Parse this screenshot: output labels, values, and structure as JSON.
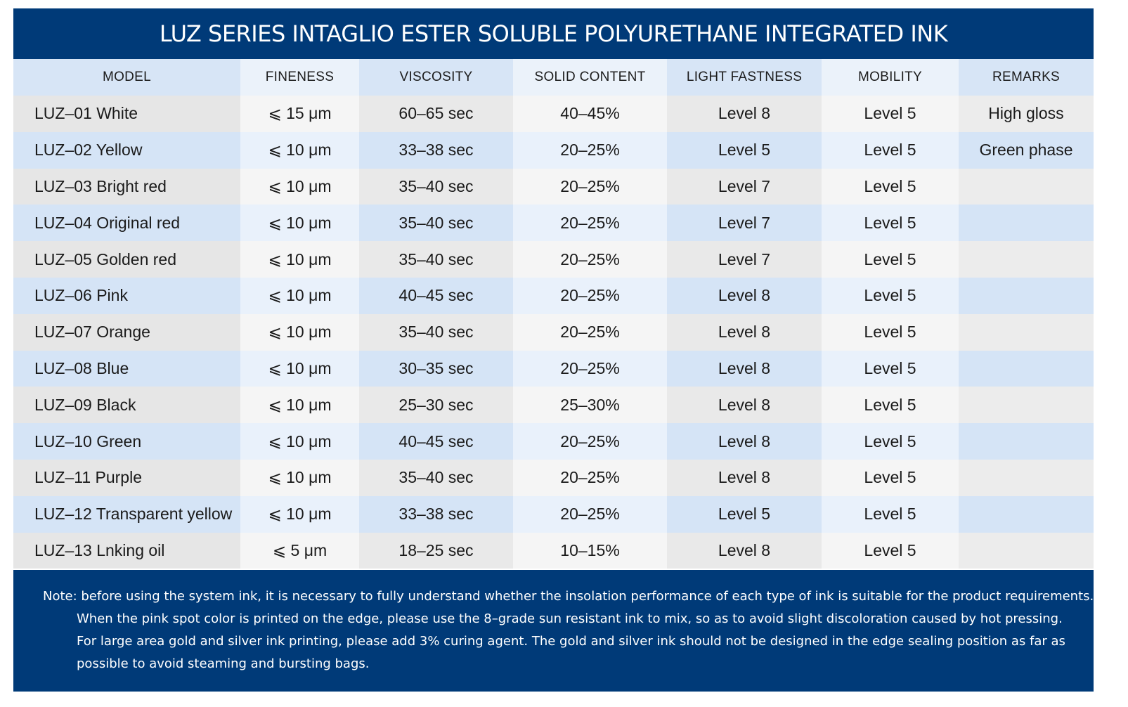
{
  "title": "LUZ SERIES INTAGLIO ESTER SOLUBLE POLYURETHANE INTEGRATED INK",
  "columns": [
    "MODEL",
    "FINENESS",
    "VISCOSITY",
    "SOLID CONTENT",
    "LIGHT FASTNESS",
    "MOBILITY",
    "REMARKS"
  ],
  "rows": [
    [
      "LUZ–01 White",
      "⩽ 15 μm",
      "60–65 sec",
      "40–45%",
      "Level 8",
      "Level 5",
      "High gloss"
    ],
    [
      "LUZ–02 Yellow",
      "⩽ 10 μm",
      "33–38 sec",
      "20–25%",
      "Level 5",
      "Level 5",
      "Green phase"
    ],
    [
      "LUZ–03 Bright red",
      "⩽ 10 μm",
      "35–40 sec",
      "20–25%",
      "Level 7",
      "Level 5",
      ""
    ],
    [
      "LUZ–04 Original red",
      "⩽ 10 μm",
      "35–40 sec",
      "20–25%",
      "Level 7",
      "Level 5",
      ""
    ],
    [
      "LUZ–05 Golden red",
      "⩽ 10 μm",
      "35–40 sec",
      "20–25%",
      "Level 7",
      "Level 5",
      ""
    ],
    [
      "LUZ–06 Pink",
      "⩽ 10 μm",
      "40–45 sec",
      "20–25%",
      "Level 8",
      "Level 5",
      ""
    ],
    [
      "LUZ–07 Orange",
      "⩽ 10 μm",
      "35–40 sec",
      "20–25%",
      "Level 8",
      "Level 5",
      ""
    ],
    [
      "LUZ–08 Blue",
      "⩽ 10 μm",
      "30–35 sec",
      "20–25%",
      "Level 8",
      "Level 5",
      ""
    ],
    [
      "LUZ–09 Black",
      "⩽ 10 μm",
      "25–30 sec",
      "25–30%",
      "Level 8",
      "Level 5",
      ""
    ],
    [
      "LUZ–10 Green",
      "⩽ 10 μm",
      "40–45 sec",
      "20–25%",
      "Level 8",
      "Level 5",
      ""
    ],
    [
      "LUZ–11 Purple",
      "⩽ 10 μm",
      "35–40 sec",
      "20–25%",
      "Level 8",
      "Level 5",
      ""
    ],
    [
      "LUZ–12 Transparent yellow",
      "⩽ 10 μm",
      "33–38 sec",
      "20–25%",
      "Level 5",
      "Level 5",
      ""
    ],
    [
      "LUZ–13 Lnking oil",
      "⩽ 5 μm",
      "18–25 sec",
      "10–15%",
      "Level 8",
      "Level 5",
      ""
    ]
  ],
  "note": {
    "first": "Note: before using the system ink, it is necessary to fully understand whether the insolation performance of each type of ink is suitable for the product requirements.",
    "rest": "When the pink spot color is printed on the edge, please use the 8–grade sun resistant ink to mix, so as to avoid slight discoloration caused by hot pressing. For large area gold and silver ink printing, please add 3% curing agent. The gold and silver ink should not be designed in the edge sealing position as far as possible to avoid steaming and bursting bags."
  },
  "colors": {
    "banner": "#003a78",
    "header_blue": "#d7e5f6",
    "row_gray": "#e9e9e9",
    "row_blue": "#d5e4f6"
  }
}
